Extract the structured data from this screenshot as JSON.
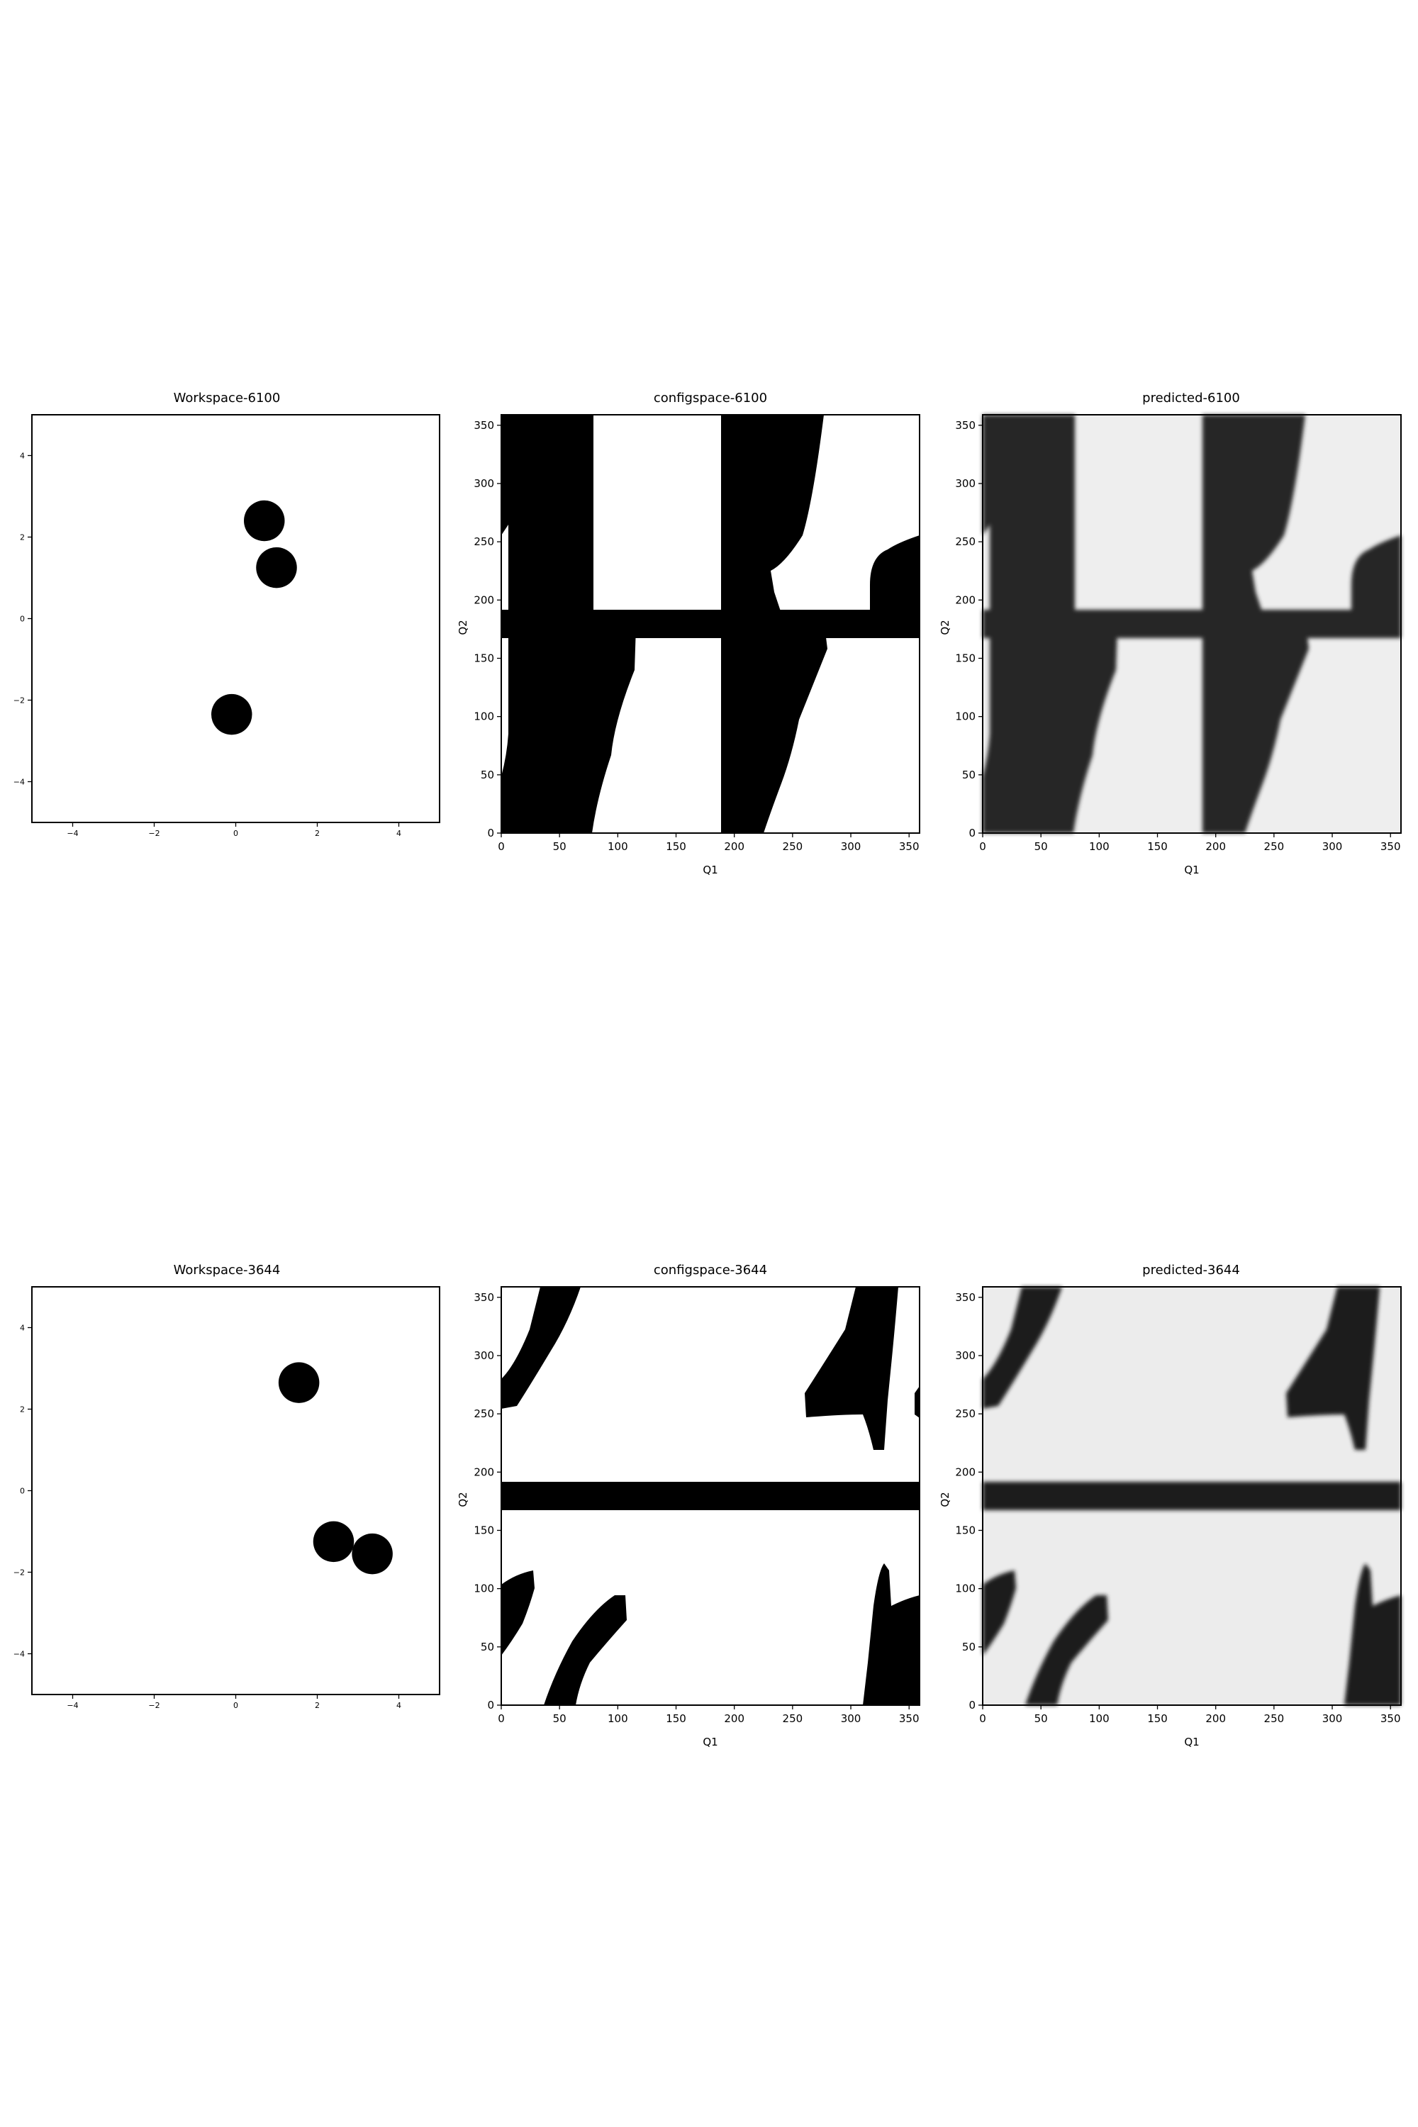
{
  "chart_data": [
    {
      "type": "scatter",
      "title": "Workspace-6100",
      "xlabel": "",
      "ylabel": "",
      "xlim": [
        -5,
        5
      ],
      "ylim": [
        -5,
        5
      ],
      "xticks": [
        "−4",
        "−2",
        "0",
        "2",
        "4"
      ],
      "yticks": [
        "−4",
        "−2",
        "0",
        "2",
        "4"
      ],
      "xtick_values": [
        -4,
        -2,
        0,
        2,
        4
      ],
      "ytick_values": [
        -4,
        -2,
        0,
        2,
        4
      ],
      "circles": [
        {
          "x": 0.7,
          "y": 2.4,
          "r": 0.5
        },
        {
          "x": 1.0,
          "y": 1.25,
          "r": 0.5
        },
        {
          "x": -0.1,
          "y": -2.35,
          "r": 0.5
        }
      ],
      "grid": false
    },
    {
      "type": "heatmap",
      "title": "configspace-6100",
      "xlabel": "Q1",
      "ylabel": "Q2",
      "xlim": [
        0,
        359
      ],
      "ylim": [
        0,
        359
      ],
      "xticks": [
        "0",
        "50",
        "100",
        "150",
        "200",
        "250",
        "300",
        "350"
      ],
      "yticks": [
        "0",
        "50",
        "100",
        "150",
        "200",
        "250",
        "300",
        "350"
      ],
      "xtick_values": [
        0,
        50,
        100,
        150,
        200,
        250,
        300,
        350
      ],
      "ytick_values": [
        0,
        50,
        100,
        150,
        200,
        250,
        300,
        350
      ],
      "obstacle_color": "#000000",
      "free_color": "#ffffff",
      "grid": false
    },
    {
      "type": "heatmap",
      "title": "predicted-6100",
      "xlabel": "Q1",
      "ylabel": "Q2",
      "xlim": [
        0,
        359
      ],
      "ylim": [
        0,
        359
      ],
      "xticks": [
        "0",
        "50",
        "100",
        "150",
        "200",
        "250",
        "300",
        "350"
      ],
      "yticks": [
        "0",
        "50",
        "100",
        "150",
        "200",
        "250",
        "300",
        "350"
      ],
      "xtick_values": [
        0,
        50,
        100,
        150,
        200,
        250,
        300,
        350
      ],
      "ytick_values": [
        0,
        50,
        100,
        150,
        200,
        250,
        300,
        350
      ],
      "obstacle_color": "#262626",
      "free_color": "#eeeeee",
      "grid": false
    },
    {
      "type": "scatter",
      "title": "Workspace-3644",
      "xlabel": "",
      "ylabel": "",
      "xlim": [
        -5,
        5
      ],
      "ylim": [
        -5,
        5
      ],
      "xticks": [
        "−4",
        "−2",
        "0",
        "2",
        "4"
      ],
      "yticks": [
        "−4",
        "−2",
        "0",
        "2",
        "4"
      ],
      "xtick_values": [
        -4,
        -2,
        0,
        2,
        4
      ],
      "ytick_values": [
        -4,
        -2,
        0,
        2,
        4
      ],
      "circles": [
        {
          "x": 1.55,
          "y": 2.65,
          "r": 0.5
        },
        {
          "x": 2.4,
          "y": -1.25,
          "r": 0.5
        },
        {
          "x": 3.35,
          "y": -1.55,
          "r": 0.5
        }
      ],
      "grid": false
    },
    {
      "type": "heatmap",
      "title": "configspace-3644",
      "xlabel": "Q1",
      "ylabel": "Q2",
      "xlim": [
        0,
        359
      ],
      "ylim": [
        0,
        359
      ],
      "xticks": [
        "0",
        "50",
        "100",
        "150",
        "200",
        "250",
        "300",
        "350"
      ],
      "yticks": [
        "0",
        "50",
        "100",
        "150",
        "200",
        "250",
        "300",
        "350"
      ],
      "xtick_values": [
        0,
        50,
        100,
        150,
        200,
        250,
        300,
        350
      ],
      "ytick_values": [
        0,
        50,
        100,
        150,
        200,
        250,
        300,
        350
      ],
      "obstacle_color": "#000000",
      "free_color": "#ffffff",
      "grid": false
    },
    {
      "type": "heatmap",
      "title": "predicted-3644",
      "xlabel": "Q1",
      "ylabel": "Q2",
      "xlim": [
        0,
        359
      ],
      "ylim": [
        0,
        359
      ],
      "xticks": [
        "0",
        "50",
        "100",
        "150",
        "200",
        "250",
        "300",
        "350"
      ],
      "yticks": [
        "0",
        "50",
        "100",
        "150",
        "200",
        "250",
        "300",
        "350"
      ],
      "xtick_values": [
        0,
        50,
        100,
        150,
        200,
        250,
        300,
        350
      ],
      "ytick_values": [
        0,
        50,
        100,
        150,
        200,
        250,
        300,
        350
      ],
      "obstacle_color": "#1e1e1e",
      "free_color": "#ececec",
      "grid": false
    }
  ]
}
